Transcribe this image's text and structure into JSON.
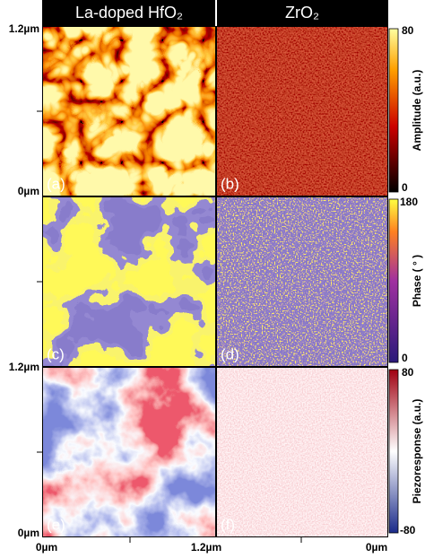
{
  "header": {
    "columns": [
      "La-doped HfO₂",
      "ZrO₂"
    ]
  },
  "panels": [
    "(a)",
    "(b)",
    "(c)",
    "(d)",
    "(e)",
    "(f)"
  ],
  "left_axis": {
    "labels": [
      "1.2µm",
      "0µm",
      "1.2µm",
      "0µm"
    ]
  },
  "bottom_axis": {
    "labels": [
      "0µm",
      "1.2µm",
      "0µm"
    ]
  },
  "colorbars": [
    {
      "label": "Amplitude (a.u.)",
      "max": 80,
      "min": 0
    },
    {
      "label": "Phase ( ° )",
      "max": 180,
      "min": 0
    },
    {
      "label": "Piezoresponse (a.u.)",
      "max": 80,
      "min": -80
    }
  ]
}
